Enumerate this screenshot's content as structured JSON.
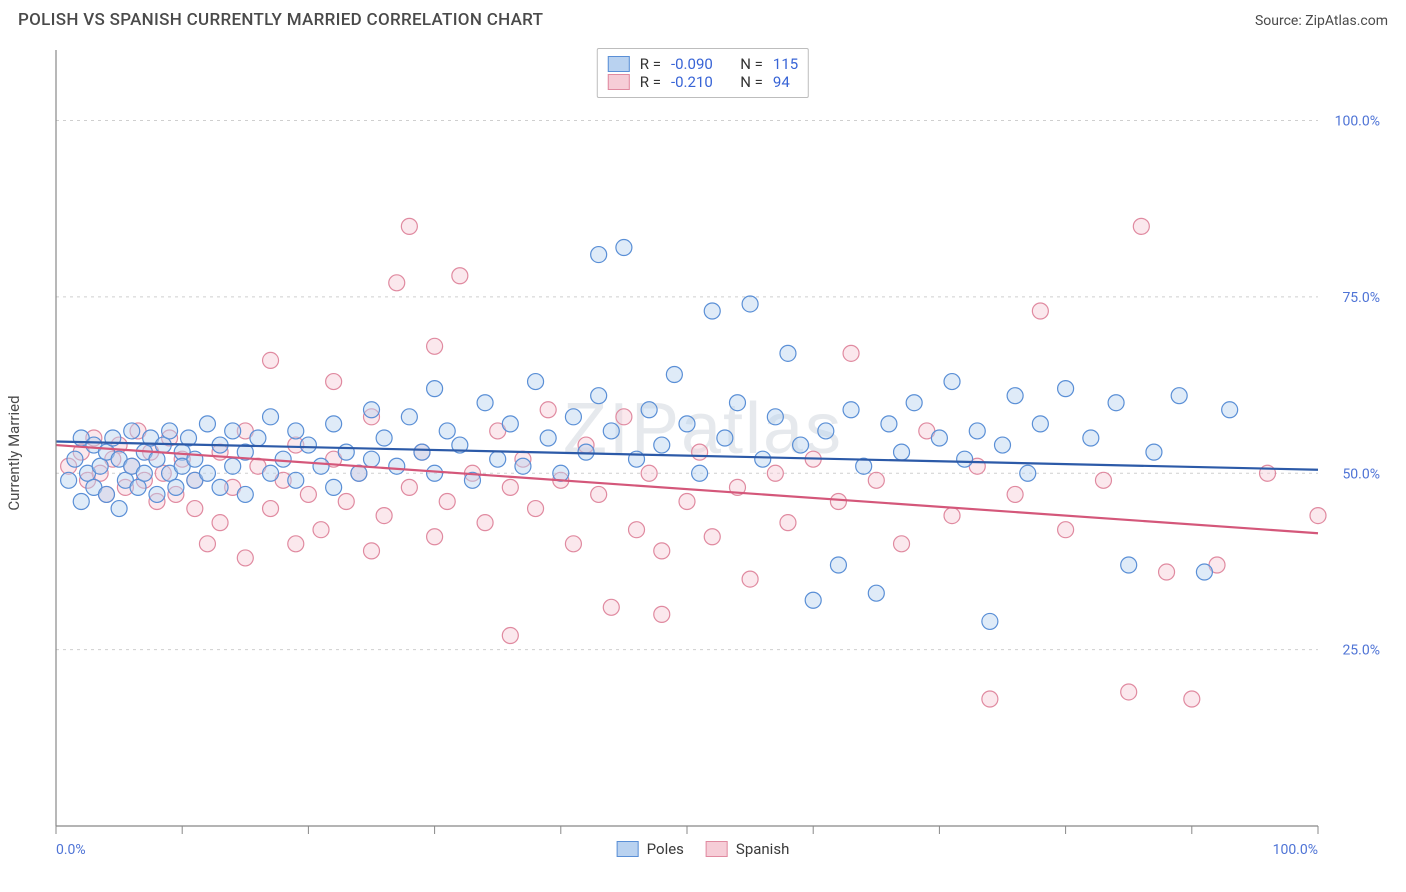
{
  "title": "POLISH VS SPANISH CURRENTLY MARRIED CORRELATION CHART",
  "source_label": "Source: ",
  "source_name": "ZipAtlas.com",
  "ylabel": "Currently Married",
  "watermark": "ZIPatlas",
  "chart": {
    "type": "scatter",
    "xlim": [
      0,
      100
    ],
    "ylim": [
      0,
      110
    ],
    "xtick_step": 10,
    "x_min_label": "0.0%",
    "x_max_label": "100.0%",
    "y_gridlines": [
      25,
      50,
      75,
      100
    ],
    "y_labels": [
      "25.0%",
      "50.0%",
      "75.0%",
      "100.0%"
    ],
    "background_color": "#ffffff",
    "grid_color": "#cfcfcf",
    "axis_color": "#888888",
    "tick_label_color": "#4f74d6",
    "marker_radius": 8,
    "series": [
      {
        "name": "Poles",
        "fill": "#b9d2f0",
        "stroke": "#5a8fd6",
        "trend_color": "#2c5aa8",
        "trend": {
          "y_at_x0": 54.5,
          "y_at_x100": 50.5
        },
        "r_value": "-0.090",
        "n_value": "115",
        "points": [
          [
            1,
            49
          ],
          [
            1.5,
            52
          ],
          [
            2,
            46
          ],
          [
            2,
            55
          ],
          [
            2.5,
            50
          ],
          [
            3,
            48
          ],
          [
            3,
            54
          ],
          [
            3.5,
            51
          ],
          [
            4,
            47
          ],
          [
            4,
            53
          ],
          [
            4.5,
            55
          ],
          [
            5,
            45
          ],
          [
            5,
            52
          ],
          [
            5.5,
            49
          ],
          [
            6,
            51
          ],
          [
            6,
            56
          ],
          [
            6.5,
            48
          ],
          [
            7,
            53
          ],
          [
            7,
            50
          ],
          [
            7.5,
            55
          ],
          [
            8,
            47
          ],
          [
            8,
            52
          ],
          [
            8.5,
            54
          ],
          [
            9,
            50
          ],
          [
            9,
            56
          ],
          [
            9.5,
            48
          ],
          [
            10,
            53
          ],
          [
            10,
            51
          ],
          [
            10.5,
            55
          ],
          [
            11,
            49
          ],
          [
            11,
            52
          ],
          [
            12,
            57
          ],
          [
            12,
            50
          ],
          [
            13,
            54
          ],
          [
            13,
            48
          ],
          [
            14,
            56
          ],
          [
            14,
            51
          ],
          [
            15,
            53
          ],
          [
            15,
            47
          ],
          [
            16,
            55
          ],
          [
            17,
            50
          ],
          [
            17,
            58
          ],
          [
            18,
            52
          ],
          [
            19,
            49
          ],
          [
            19,
            56
          ],
          [
            20,
            54
          ],
          [
            21,
            51
          ],
          [
            22,
            57
          ],
          [
            22,
            48
          ],
          [
            23,
            53
          ],
          [
            24,
            50
          ],
          [
            25,
            59
          ],
          [
            25,
            52
          ],
          [
            26,
            55
          ],
          [
            27,
            51
          ],
          [
            28,
            58
          ],
          [
            29,
            53
          ],
          [
            30,
            62
          ],
          [
            30,
            50
          ],
          [
            31,
            56
          ],
          [
            32,
            54
          ],
          [
            33,
            49
          ],
          [
            34,
            60
          ],
          [
            35,
            52
          ],
          [
            36,
            57
          ],
          [
            37,
            51
          ],
          [
            38,
            63
          ],
          [
            39,
            55
          ],
          [
            40,
            50
          ],
          [
            41,
            58
          ],
          [
            42,
            53
          ],
          [
            43,
            61
          ],
          [
            43,
            81
          ],
          [
            44,
            56
          ],
          [
            45,
            82
          ],
          [
            46,
            52
          ],
          [
            47,
            59
          ],
          [
            48,
            54
          ],
          [
            49,
            64
          ],
          [
            50,
            57
          ],
          [
            51,
            50
          ],
          [
            52,
            73
          ],
          [
            53,
            55
          ],
          [
            54,
            60
          ],
          [
            55,
            74
          ],
          [
            56,
            52
          ],
          [
            57,
            58
          ],
          [
            58,
            67
          ],
          [
            59,
            54
          ],
          [
            60,
            32
          ],
          [
            61,
            56
          ],
          [
            62,
            37
          ],
          [
            63,
            59
          ],
          [
            64,
            51
          ],
          [
            65,
            33
          ],
          [
            66,
            57
          ],
          [
            67,
            53
          ],
          [
            68,
            60
          ],
          [
            70,
            55
          ],
          [
            71,
            63
          ],
          [
            72,
            52
          ],
          [
            73,
            56
          ],
          [
            74,
            29
          ],
          [
            75,
            54
          ],
          [
            76,
            61
          ],
          [
            77,
            50
          ],
          [
            78,
            57
          ],
          [
            80,
            62
          ],
          [
            82,
            55
          ],
          [
            84,
            60
          ],
          [
            85,
            37
          ],
          [
            87,
            53
          ],
          [
            89,
            61
          ],
          [
            91,
            36
          ],
          [
            93,
            59
          ]
        ]
      },
      {
        "name": "Spanish",
        "fill": "#f6cdd7",
        "stroke": "#e08aa0",
        "trend_color": "#d4577a",
        "trend": {
          "y_at_x0": 54.0,
          "y_at_x100": 41.5
        },
        "r_value": "-0.210",
        "n_value": "94",
        "points": [
          [
            1,
            51
          ],
          [
            2,
            53
          ],
          [
            2.5,
            49
          ],
          [
            3,
            55
          ],
          [
            3.5,
            50
          ],
          [
            4,
            47
          ],
          [
            4.5,
            52
          ],
          [
            5,
            54
          ],
          [
            5.5,
            48
          ],
          [
            6,
            51
          ],
          [
            6.5,
            56
          ],
          [
            7,
            49
          ],
          [
            7.5,
            53
          ],
          [
            8,
            46
          ],
          [
            8.5,
            50
          ],
          [
            9,
            55
          ],
          [
            9.5,
            47
          ],
          [
            10,
            52
          ],
          [
            11,
            49
          ],
          [
            11,
            45
          ],
          [
            12,
            40
          ],
          [
            13,
            53
          ],
          [
            13,
            43
          ],
          [
            14,
            48
          ],
          [
            15,
            38
          ],
          [
            15,
            56
          ],
          [
            16,
            51
          ],
          [
            17,
            45
          ],
          [
            17,
            66
          ],
          [
            18,
            49
          ],
          [
            19,
            40
          ],
          [
            19,
            54
          ],
          [
            20,
            47
          ],
          [
            21,
            42
          ],
          [
            22,
            52
          ],
          [
            22,
            63
          ],
          [
            23,
            46
          ],
          [
            24,
            50
          ],
          [
            25,
            39
          ],
          [
            25,
            58
          ],
          [
            26,
            44
          ],
          [
            27,
            77
          ],
          [
            28,
            48
          ],
          [
            28,
            85
          ],
          [
            29,
            53
          ],
          [
            30,
            41
          ],
          [
            30,
            68
          ],
          [
            31,
            46
          ],
          [
            32,
            78
          ],
          [
            33,
            50
          ],
          [
            34,
            43
          ],
          [
            35,
            56
          ],
          [
            36,
            48
          ],
          [
            36,
            27
          ],
          [
            37,
            52
          ],
          [
            38,
            45
          ],
          [
            39,
            59
          ],
          [
            40,
            49
          ],
          [
            41,
            40
          ],
          [
            42,
            54
          ],
          [
            43,
            47
          ],
          [
            44,
            31
          ],
          [
            45,
            58
          ],
          [
            46,
            42
          ],
          [
            47,
            50
          ],
          [
            48,
            30
          ],
          [
            48,
            39
          ],
          [
            50,
            46
          ],
          [
            51,
            53
          ],
          [
            52,
            41
          ],
          [
            54,
            48
          ],
          [
            55,
            35
          ],
          [
            57,
            50
          ],
          [
            58,
            43
          ],
          [
            60,
            52
          ],
          [
            62,
            46
          ],
          [
            63,
            67
          ],
          [
            65,
            49
          ],
          [
            67,
            40
          ],
          [
            69,
            56
          ],
          [
            71,
            44
          ],
          [
            73,
            51
          ],
          [
            74,
            18
          ],
          [
            76,
            47
          ],
          [
            78,
            73
          ],
          [
            80,
            42
          ],
          [
            83,
            49
          ],
          [
            85,
            19
          ],
          [
            86,
            85
          ],
          [
            88,
            36
          ],
          [
            90,
            18
          ],
          [
            92,
            37
          ],
          [
            96,
            50
          ],
          [
            100,
            44
          ]
        ]
      }
    ]
  },
  "legend_top": {
    "r_label": "R =",
    "n_label": "N ="
  },
  "legend_bottom": {
    "items": [
      "Poles",
      "Spanish"
    ]
  }
}
